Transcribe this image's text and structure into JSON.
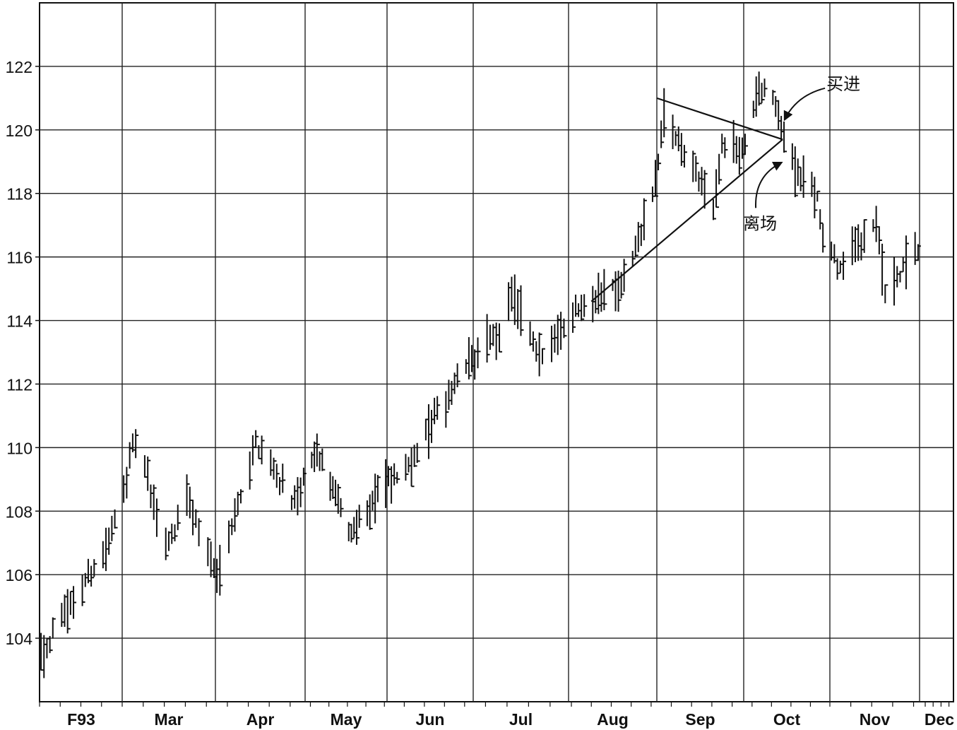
{
  "chart_data": {
    "type": "bar",
    "subtype": "ohlc-price-bars",
    "title": "",
    "xlabel": "",
    "ylabel": "",
    "ylim": [
      102,
      124
    ],
    "grid": true,
    "legend": "none",
    "y_ticks": [
      104,
      106,
      108,
      110,
      112,
      114,
      116,
      118,
      120,
      122
    ],
    "x_tick_labels": [
      "F93",
      "Mar",
      "Apr",
      "May",
      "Jun",
      "Jul",
      "Aug",
      "Sep",
      "Oct",
      "Nov",
      "Dec"
    ],
    "x_start": "1993-02-01",
    "months": [
      {
        "label": "F93",
        "start": "1993-02-01"
      },
      {
        "label": "Mar",
        "start": "1993-03-01"
      },
      {
        "label": "Apr",
        "start": "1993-04-01"
      },
      {
        "label": "May",
        "start": "1993-05-01"
      },
      {
        "label": "Jun",
        "start": "1993-06-01"
      },
      {
        "label": "Jul",
        "start": "1993-07-01"
      },
      {
        "label": "Aug",
        "start": "1993-08-01"
      },
      {
        "label": "Sep",
        "start": "1993-09-01"
      },
      {
        "label": "Oct",
        "start": "1993-10-01"
      },
      {
        "label": "Nov",
        "start": "1993-11-01"
      },
      {
        "label": "Dec",
        "start": "1993-12-01"
      }
    ],
    "key_points": [
      {
        "x": "1993-02-01",
        "y": 103.5
      },
      {
        "x": "1993-02-24",
        "y": 107.0
      },
      {
        "x": "1993-03-05",
        "y": 110.3
      },
      {
        "x": "1993-03-15",
        "y": 106.8
      },
      {
        "x": "1993-03-22",
        "y": 108.4
      },
      {
        "x": "1993-04-01",
        "y": 106.0
      },
      {
        "x": "1993-04-14",
        "y": 110.2
      },
      {
        "x": "1993-04-27",
        "y": 108.3
      },
      {
        "x": "1993-05-05",
        "y": 109.9
      },
      {
        "x": "1993-05-18",
        "y": 107.3
      },
      {
        "x": "1993-05-27",
        "y": 108.5
      },
      {
        "x": "1993-06-07",
        "y": 109.3
      },
      {
        "x": "1993-06-15",
        "y": 110.6
      },
      {
        "x": "1993-06-28",
        "y": 112.6
      },
      {
        "x": "1993-07-09",
        "y": 113.6
      },
      {
        "x": "1993-07-13",
        "y": 114.8
      },
      {
        "x": "1993-07-22",
        "y": 112.8
      },
      {
        "x": "1993-08-02",
        "y": 114.3
      },
      {
        "x": "1993-08-13",
        "y": 115.0
      },
      {
        "x": "1993-08-20",
        "y": 115.2
      },
      {
        "x": "1993-08-31",
        "y": 118.3
      },
      {
        "x": "1993-09-03",
        "y": 120.5
      },
      {
        "x": "1993-09-10",
        "y": 119.2
      },
      {
        "x": "1993-09-14",
        "y": 118.6
      },
      {
        "x": "1993-09-20",
        "y": 117.6
      },
      {
        "x": "1993-09-23",
        "y": 119.5
      },
      {
        "x": "1993-09-30",
        "y": 119.3
      },
      {
        "x": "1993-10-06",
        "y": 121.3
      },
      {
        "x": "1993-10-11",
        "y": 121.1
      },
      {
        "x": "1993-10-14",
        "y": 120.0
      },
      {
        "x": "1993-10-20",
        "y": 118.7
      },
      {
        "x": "1993-10-27",
        "y": 117.9
      },
      {
        "x": "1993-10-29",
        "y": 116.6
      },
      {
        "x": "1993-11-04",
        "y": 115.6
      },
      {
        "x": "1993-11-10",
        "y": 116.5
      },
      {
        "x": "1993-11-16",
        "y": 117.2
      },
      {
        "x": "1993-11-19",
        "y": 114.8
      },
      {
        "x": "1993-11-26",
        "y": 115.7
      },
      {
        "x": "1993-11-30",
        "y": 116.1
      }
    ],
    "trendlines": [
      {
        "name": "upper",
        "from": {
          "x": "1993-09-01",
          "y": 121.0
        },
        "to": {
          "x": "1993-10-15",
          "y": 119.7
        }
      },
      {
        "name": "lower",
        "from": {
          "x": "1993-08-09",
          "y": 114.6
        },
        "to": {
          "x": "1993-10-15",
          "y": 119.7
        }
      }
    ],
    "annotations": [
      {
        "text": "买进",
        "target": {
          "x": "1993-10-15",
          "y": 120.2
        }
      },
      {
        "text": "离场",
        "target": {
          "x": "1993-10-15",
          "y": 119.1
        }
      }
    ]
  }
}
